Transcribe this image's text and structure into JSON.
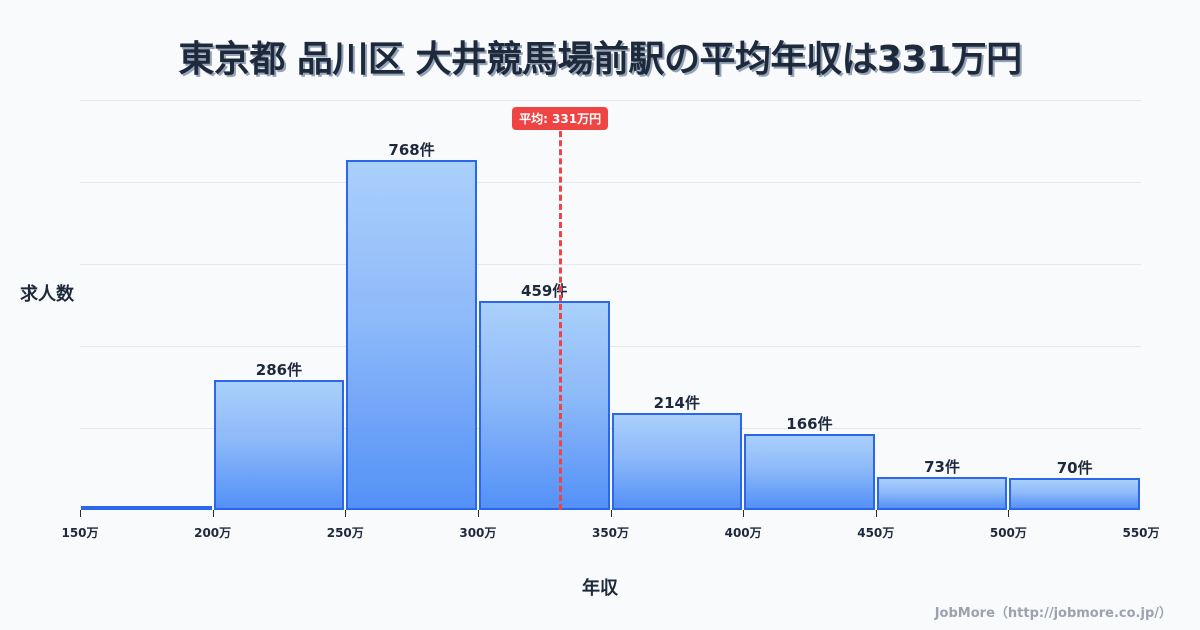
{
  "title": "東京都 品川区 大井競馬場前駅の平均年収は331万円",
  "mean_badge": "平均: 331万円",
  "ylabel": "求人数",
  "xlabel": "年収",
  "footer": "JobMore（http://jobmore.co.jp/）",
  "colors": {
    "bar_border": "#2563eb",
    "bar_top": "#a8cffb",
    "bar_bottom": "#4f8ef7",
    "mean_line": "#ef4444",
    "background": "#f8fafc",
    "text": "#1e293b"
  },
  "chart_data": {
    "type": "bar",
    "title": "東京都 品川区 大井競馬場前駅の平均年収は331万円",
    "xlabel": "年収",
    "ylabel": "求人数",
    "categories": [
      "150万-200万",
      "200万-250万",
      "250万-300万",
      "300万-350万",
      "350万-400万",
      "400万-450万",
      "450万-500万",
      "500万-550万"
    ],
    "values": [
      8,
      286,
      768,
      459,
      214,
      166,
      73,
      70
    ],
    "labels": [
      "",
      "286件",
      "768件",
      "459件",
      "214件",
      "166件",
      "73件",
      "70件"
    ],
    "x_ticks": [
      "150万",
      "200万",
      "250万",
      "300万",
      "350万",
      "400万",
      "450万",
      "500万",
      "550万"
    ],
    "x_range": [
      150,
      550
    ],
    "ylim": [
      0,
      900
    ],
    "y_gridlines": [
      0,
      180,
      360,
      540,
      720,
      900
    ],
    "grid": true,
    "y_ticks_visible": false,
    "mean": 331,
    "mean_label": "平均: 331万円",
    "legend": null
  }
}
